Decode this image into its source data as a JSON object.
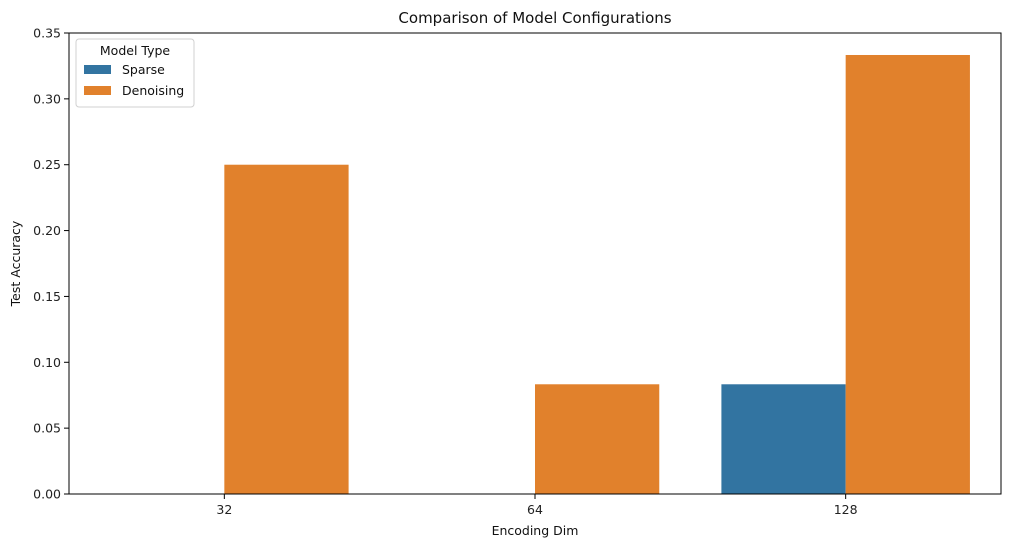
{
  "chart_data": {
    "type": "bar",
    "title": "Comparison of Model Configurations",
    "xlabel": "Encoding Dim",
    "ylabel": "Test Accuracy",
    "categories": [
      "32",
      "64",
      "128"
    ],
    "series": [
      {
        "name": "Sparse",
        "color": "#3274a1",
        "values": [
          0.0,
          0.0,
          0.0833
        ]
      },
      {
        "name": "Denoising",
        "color": "#e1812c",
        "values": [
          0.25,
          0.0833,
          0.3333
        ]
      }
    ],
    "ylim": [
      0,
      0.35
    ],
    "yticks": [
      "0.00",
      "0.05",
      "0.10",
      "0.15",
      "0.20",
      "0.25",
      "0.30",
      "0.35"
    ],
    "grid": false,
    "legend": {
      "title": "Model Type",
      "placement": "top-left"
    }
  }
}
